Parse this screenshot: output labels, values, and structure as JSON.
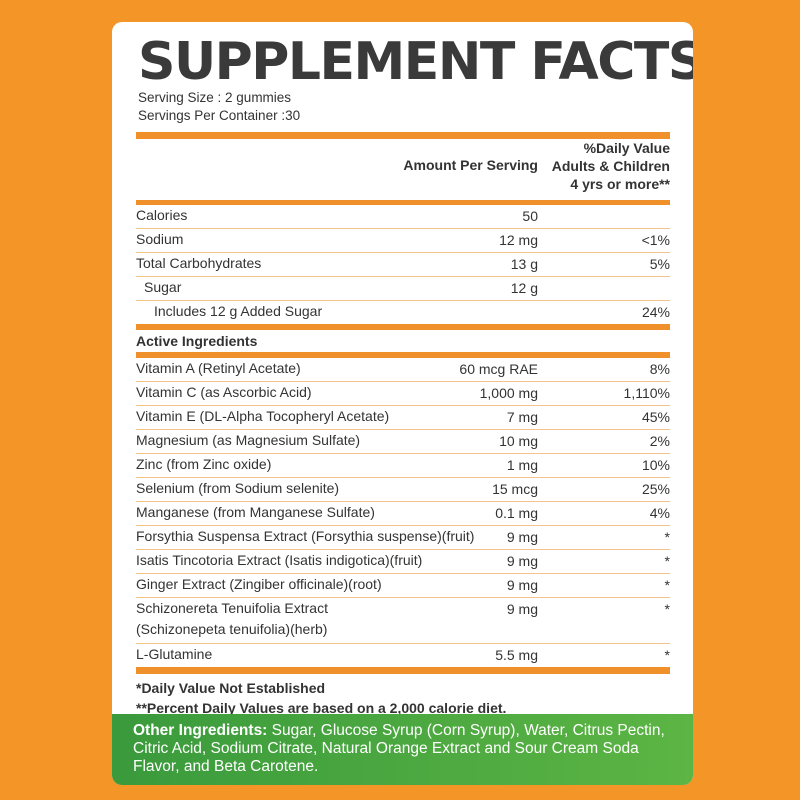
{
  "title": "SUPPLEMENT FACTS",
  "serving_size": "Serving Size : 2 gummies",
  "servings_per_container": "Servings Per Container :30",
  "header": {
    "amount": "Amount Per Serving",
    "dv_line1": "%Daily Value",
    "dv_line2": "Adults & Children",
    "dv_line3": "4 yrs or more**"
  },
  "nutrition_rows": [
    {
      "name": "Calories",
      "amount": "50",
      "dv": ""
    },
    {
      "name": "Sodium",
      "amount": "12 mg",
      "dv": "<1%"
    },
    {
      "name": "Total Carbohydrates",
      "amount": "13 g",
      "dv": "5%"
    },
    {
      "name": "Sugar",
      "amount": "12 g",
      "dv": ""
    },
    {
      "name": "Includes 12 g Added Sugar",
      "amount": "",
      "dv": "24%"
    }
  ],
  "active_heading": "Active Ingredients",
  "active_rows": [
    {
      "name": "Vitamin A (Retinyl Acetate)",
      "amount": "60 mcg RAE",
      "dv": "8%"
    },
    {
      "name": "Vitamin C (as Ascorbic Acid)",
      "amount": "1,000 mg",
      "dv": "1,110%"
    },
    {
      "name": "Vitamin E (DL-Alpha Tocopheryl Acetate)",
      "amount": "7 mg",
      "dv": "45%"
    },
    {
      "name": "Magnesium (as Magnesium Sulfate)",
      "amount": "10 mg",
      "dv": "2%"
    },
    {
      "name": "Zinc (from Zinc oxide)",
      "amount": "1 mg",
      "dv": "10%"
    },
    {
      "name": "Selenium (from Sodium selenite)",
      "amount": "15 mcg",
      "dv": "25%"
    },
    {
      "name": "Manganese (from Manganese Sulfate)",
      "amount": "0.1 mg",
      "dv": "4%"
    },
    {
      "name": "Forsythia Suspensa Extract (Forsythia suspense)(fruit)",
      "amount": "9 mg",
      "dv": "*"
    },
    {
      "name": "Isatis Tincotoria Extract (Isatis indigotica)(fruit)",
      "amount": "9 mg",
      "dv": "*"
    },
    {
      "name": "Ginger Extract (Zingiber officinale)(root)",
      "amount": "9 mg",
      "dv": "*"
    },
    {
      "name": "Schizonereta Tenuifolia Extract",
      "name2": "(Schizonepeta tenuifolia)(herb)",
      "amount": "9 mg",
      "dv": "*"
    },
    {
      "name": "L-Glutamine",
      "amount": "5.5 mg",
      "dv": "*"
    }
  ],
  "footnote1": "*Daily Value Not Established",
  "footnote2": "**Percent Daily Values are based on a 2,000 calorie diet.",
  "other_ingredients_label": "Other Ingredients:",
  "other_ingredients": " Sugar, Glucose Syrup (Corn Syrup), Water, Citrus Pectin, Citric Acid, Sodium Citrate, Natural Orange Extract and Sour Cream Soda Flavor, and Beta Carotene.",
  "colors": {
    "background": "#f39527",
    "bars": "#f0902a",
    "green_band": "#4aa840",
    "title": "#3a3a3a"
  }
}
